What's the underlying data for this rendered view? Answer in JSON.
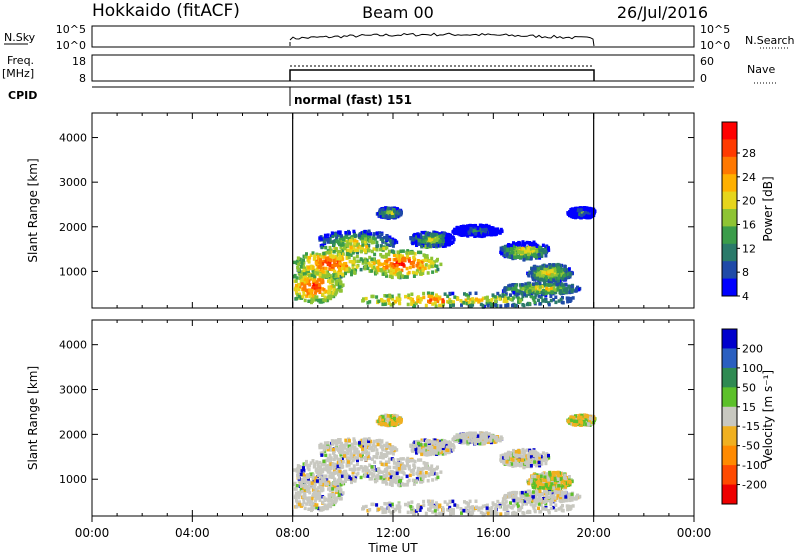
{
  "header": {
    "station": "Hokkaido (fitACF)",
    "beam": "Beam 00",
    "date": "26/Jul/2016"
  },
  "top_panels": {
    "nsky_label": "N.Sky",
    "nsky_ticks": [
      "10^5",
      "10^0"
    ],
    "nsearch_label": "N.Search",
    "nsearch_ticks": [
      "10^5",
      "10^0"
    ],
    "freq_label": "Freq.",
    "freq_unit": "[MHz]",
    "freq_ticks": [
      "18",
      "8"
    ],
    "nave_label": "Nave",
    "nave_ticks": [
      "60",
      "0"
    ],
    "cpid_label": "CPID",
    "cpid_value": "normal (fast) 151"
  },
  "chart_data": [
    {
      "type": "heatmap",
      "name": "power",
      "ylabel": "Slant Range [km]",
      "ylim": [
        180,
        4550
      ],
      "yticks": [
        1000,
        2000,
        3000,
        4000
      ],
      "colorbar": {
        "label": "Power [dB]",
        "ticks": [
          "28",
          "24",
          "20",
          "16",
          "12",
          "8",
          "4"
        ],
        "colors": [
          "#ff0000",
          "#ff3a00",
          "#ff7800",
          "#ffb000",
          "#e6d51c",
          "#8ec434",
          "#3a9c4a",
          "#2a7a6a",
          "#1f4aa8",
          "#0000ff"
        ]
      },
      "observation_window_ut": [
        "08:00",
        "20:00"
      ]
    },
    {
      "type": "heatmap",
      "name": "velocity",
      "ylabel": "Slant Range [km]",
      "ylim": [
        180,
        4550
      ],
      "yticks": [
        1000,
        2000,
        3000,
        4000
      ],
      "colorbar": {
        "label": "Velocity [m s⁻¹]",
        "ticks": [
          "200",
          "100",
          "50",
          "15",
          "-15",
          "-50",
          "-100",
          "-200"
        ],
        "colors": [
          "#0000cc",
          "#2a5fc0",
          "#2f8a52",
          "#5cc02a",
          "#c8c8c0",
          "#f0b020",
          "#ff8a00",
          "#ff4a00",
          "#ee0000"
        ]
      },
      "observation_window_ut": [
        "08:00",
        "20:00"
      ]
    }
  ],
  "x_axis": {
    "label": "Time UT",
    "ticks": [
      "00:00",
      "04:00",
      "08:00",
      "12:00",
      "16:00",
      "20:00",
      "00:00"
    ]
  }
}
